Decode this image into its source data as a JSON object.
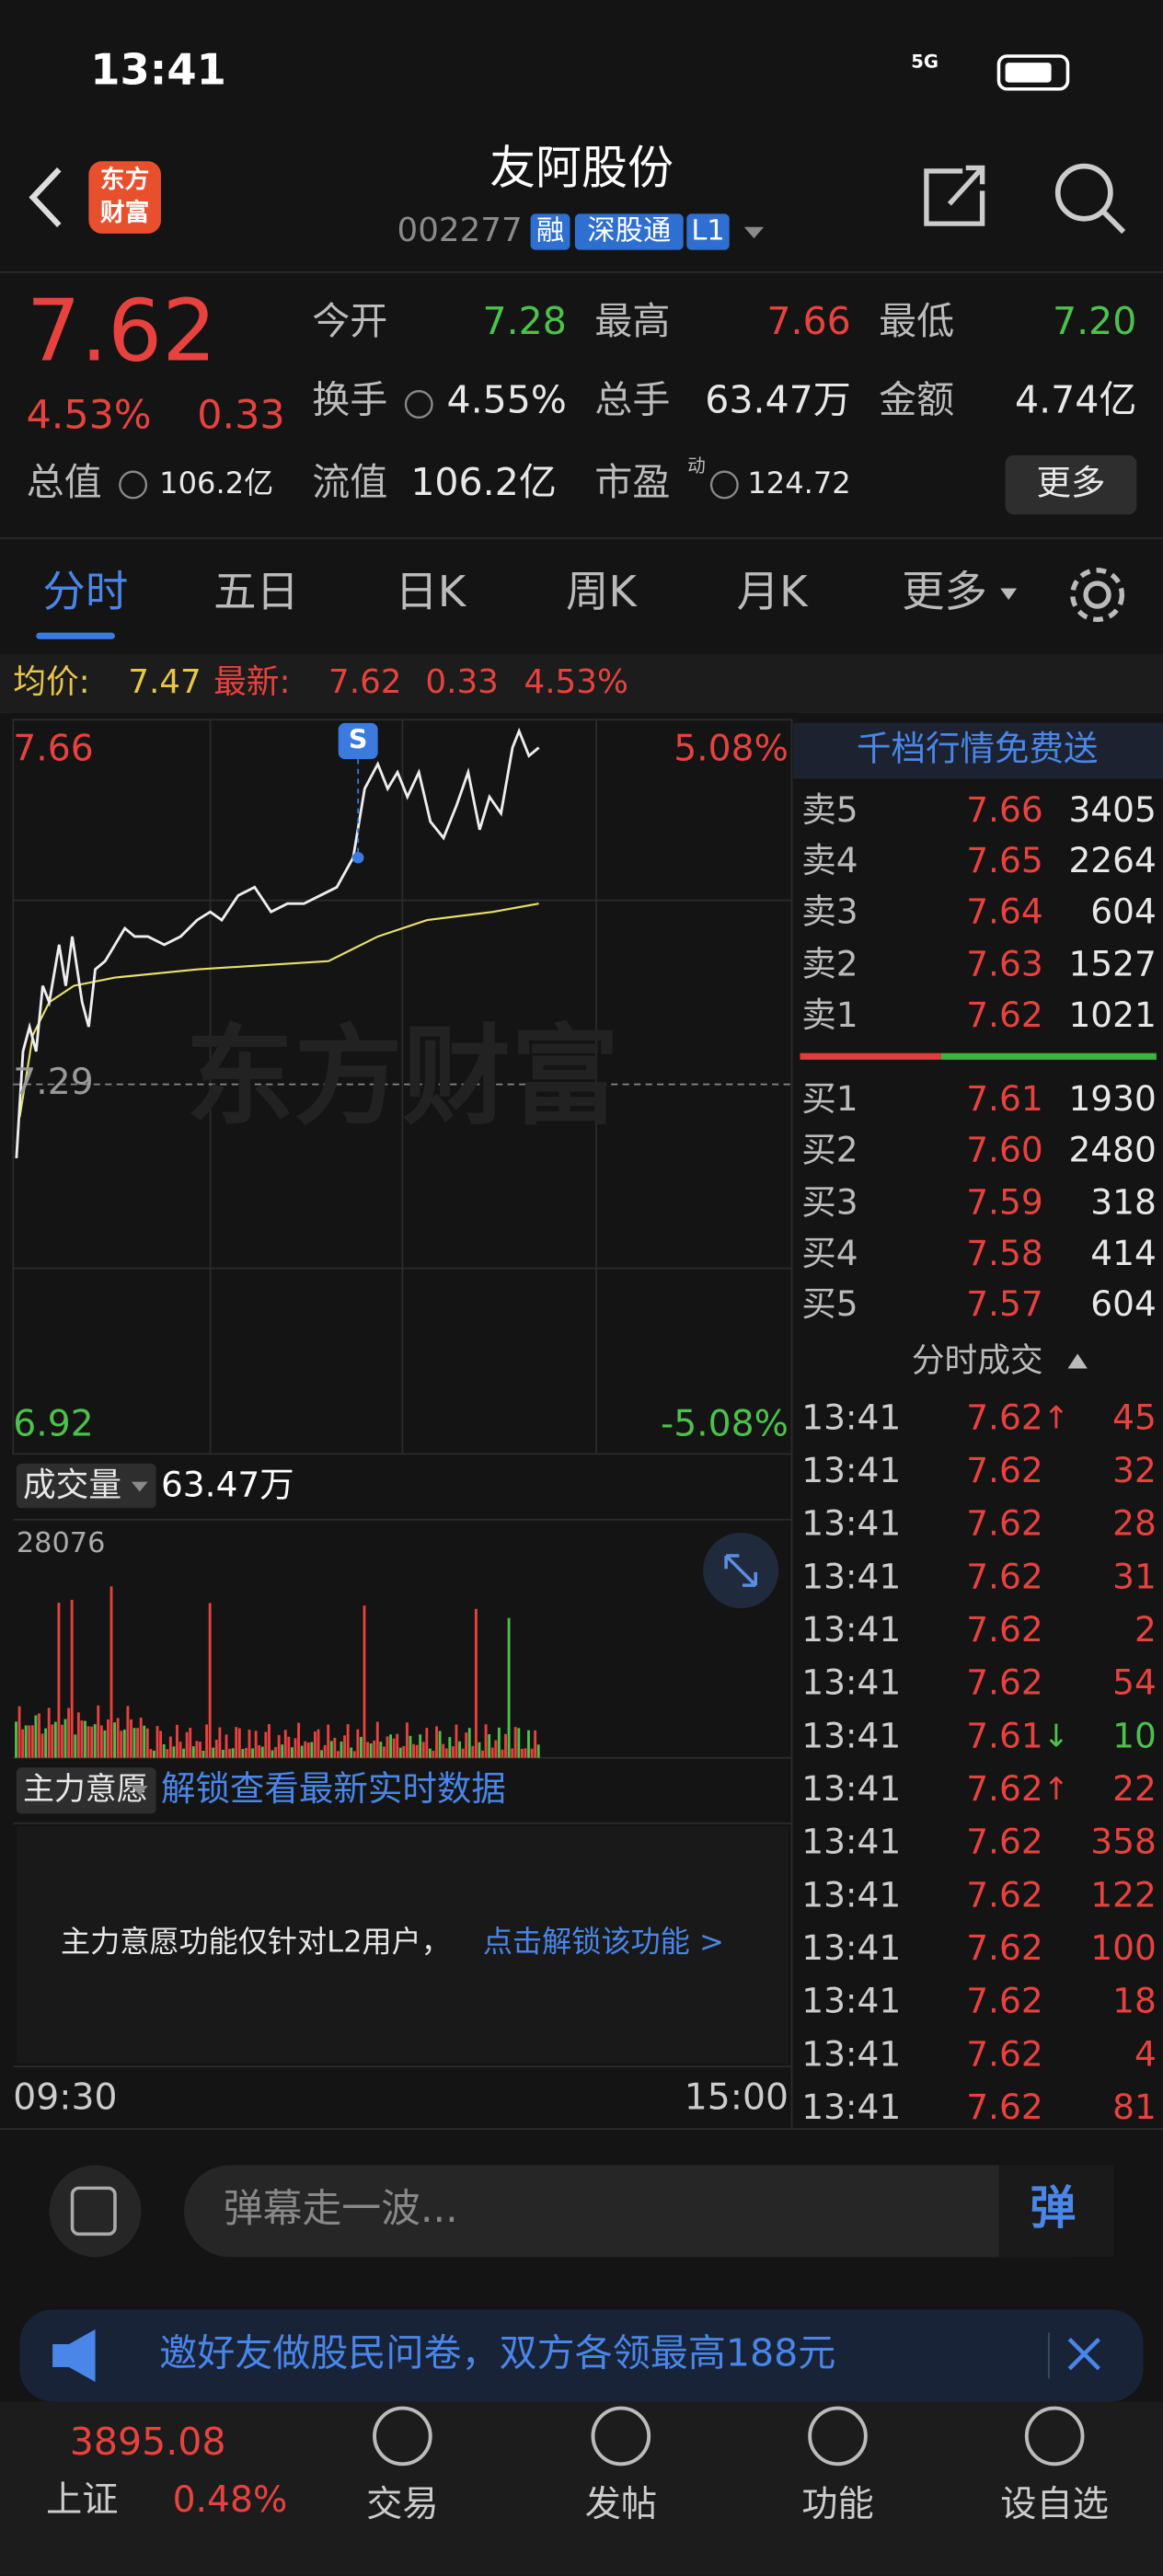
{
  "status": {
    "time": "13:41",
    "network": "5G"
  },
  "header": {
    "logo": [
      "东方",
      "财富"
    ],
    "title": "友阿股份",
    "code": "002277",
    "tags": [
      "融",
      "深股通",
      "L1"
    ]
  },
  "quote": {
    "price": "7.62",
    "change_pct": "4.53%",
    "change": "0.33",
    "fields": [
      {
        "label": "今开",
        "value": "7.28"
      },
      {
        "label": "最高",
        "value": "7.66"
      },
      {
        "label": "最低",
        "value": "7.20"
      },
      {
        "label": "换手",
        "value": "4.55%"
      },
      {
        "label": "总手",
        "value": "63.47万"
      },
      {
        "label": "金额",
        "value": "4.74亿"
      },
      {
        "label": "总值",
        "value": "106.2亿"
      },
      {
        "label": "流值",
        "value": "106.2亿"
      },
      {
        "label": "市盈",
        "value": "124.72",
        "sup": "动"
      }
    ],
    "more": "更多"
  },
  "tabs": [
    "分时",
    "五日",
    "日K",
    "周K",
    "月K",
    "更多"
  ],
  "avg_bar": {
    "avg_label": "均价:",
    "avg": "7.47",
    "latest_label": "最新:",
    "latest": "7.62",
    "change": "0.33",
    "pct": "4.53%"
  },
  "chart": {
    "y_high": "7.66",
    "y_low": "6.92",
    "pct_high": "5.08%",
    "pct_low": "-5.08%",
    "mid": "7.29",
    "marker": "S",
    "watermark": "东方财富",
    "volume_label": "成交量",
    "volume": "63.47万",
    "volume_max": "28076",
    "main_label": "主力意愿",
    "unlock": "解锁查看最新实时数据",
    "notice": "主力意愿功能仅针对L2用户，",
    "notice_link": "点击解锁该功能 >",
    "time_start": "09:30",
    "time_end": "15:00"
  },
  "order_book": {
    "title": "千档行情免费送",
    "asks": [
      {
        "label": "卖5",
        "price": "7.66",
        "vol": "3405"
      },
      {
        "label": "卖4",
        "price": "7.65",
        "vol": "2264"
      },
      {
        "label": "卖3",
        "price": "7.64",
        "vol": "604"
      },
      {
        "label": "卖2",
        "price": "7.63",
        "vol": "1527"
      },
      {
        "label": "卖1",
        "price": "7.62",
        "vol": "1021"
      }
    ],
    "bids": [
      {
        "label": "买1",
        "price": "7.61",
        "vol": "1930"
      },
      {
        "label": "买2",
        "price": "7.60",
        "vol": "2480"
      },
      {
        "label": "买3",
        "price": "7.59",
        "vol": "318"
      },
      {
        "label": "买4",
        "price": "7.58",
        "vol": "414"
      },
      {
        "label": "买5",
        "price": "7.57",
        "vol": "604"
      }
    ]
  },
  "trades": {
    "title": "分时成交",
    "rows": [
      {
        "time": "13:41",
        "price": "7.62",
        "dir": "↑",
        "vol": "45"
      },
      {
        "time": "13:41",
        "price": "7.62",
        "vol": "32"
      },
      {
        "time": "13:41",
        "price": "7.62",
        "vol": "28"
      },
      {
        "time": "13:41",
        "price": "7.62",
        "vol": "31"
      },
      {
        "time": "13:41",
        "price": "7.62",
        "vol": "2"
      },
      {
        "time": "13:41",
        "price": "7.62",
        "vol": "54"
      },
      {
        "time": "13:41",
        "price": "7.61",
        "dir": "↓",
        "vol": "10"
      },
      {
        "time": "13:41",
        "price": "7.62",
        "dir": "↑",
        "vol": "22"
      },
      {
        "time": "13:41",
        "price": "7.62",
        "vol": "358"
      },
      {
        "time": "13:41",
        "price": "7.62",
        "vol": "122"
      },
      {
        "time": "13:41",
        "price": "7.62",
        "vol": "100"
      },
      {
        "time": "13:41",
        "price": "7.62",
        "vol": "18"
      },
      {
        "time": "13:41",
        "price": "7.62",
        "vol": "4"
      },
      {
        "time": "13:41",
        "price": "7.62",
        "vol": "81"
      }
    ]
  },
  "comment": {
    "placeholder": "弹幕走一波...",
    "button": "弹"
  },
  "banner": {
    "text": "邀好友做股民问卷，双方各领最高188元"
  },
  "nav": {
    "index_value": "3895.08",
    "index_name": "上证",
    "index_pct": "0.48%",
    "items": [
      "交易",
      "发帖",
      "功能",
      "设自选"
    ]
  }
}
